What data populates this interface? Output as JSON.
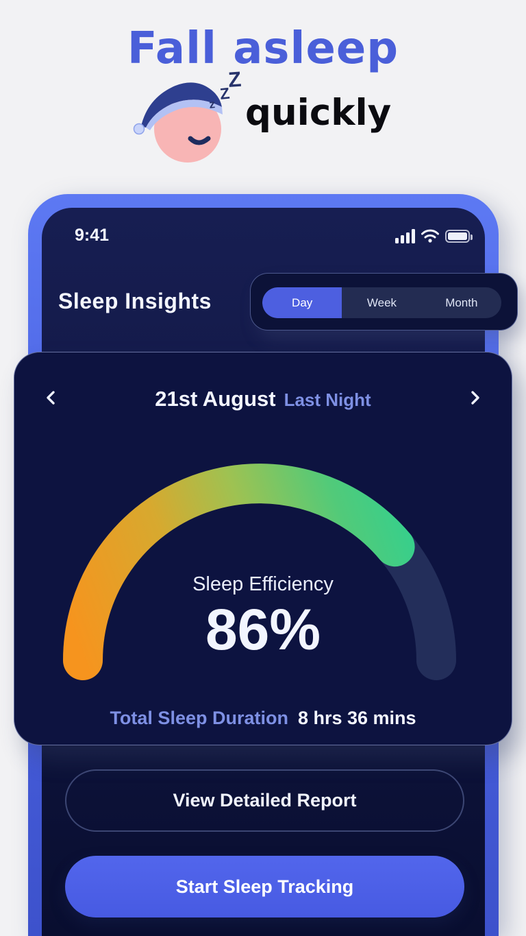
{
  "hero": {
    "title_blue": "Fall asleep",
    "title_dark": "quickly",
    "zzz": [
      "z",
      "Z",
      "Z"
    ]
  },
  "status_bar": {
    "time": "9:41",
    "icons": [
      "cellular-signal-icon",
      "wifi-icon",
      "battery-icon"
    ]
  },
  "header": {
    "title": "Sleep Insights"
  },
  "tabs": [
    {
      "label": "Day",
      "active": true
    },
    {
      "label": "Week",
      "active": false
    },
    {
      "label": "Month",
      "active": false
    }
  ],
  "card": {
    "date": "21st August",
    "date_note": "Last Night",
    "prev_icon": "chevron-left-icon",
    "next_icon": "chevron-right-icon",
    "gauge": {
      "label": "Sleep Efficiency",
      "value": "86%",
      "percent": 86,
      "arc_sweep_deg": 140,
      "start_color": "#f6941e",
      "mid_color": "#9ec252",
      "end_color": "#32d08f",
      "track_color": "#232e5a"
    },
    "duration_label": "Total Sleep Duration",
    "duration_value": "8 hrs 36 mins"
  },
  "buttons": {
    "secondary": "View Detailed Report",
    "primary": "Start Sleep Tracking"
  },
  "colors": {
    "hero_blue": "#4a5fd9",
    "tab_active": "#4d5fe0",
    "primary_button": "#4d62e9",
    "card_bg": "#0d1340",
    "accent_lavender": "#7e90e4"
  }
}
